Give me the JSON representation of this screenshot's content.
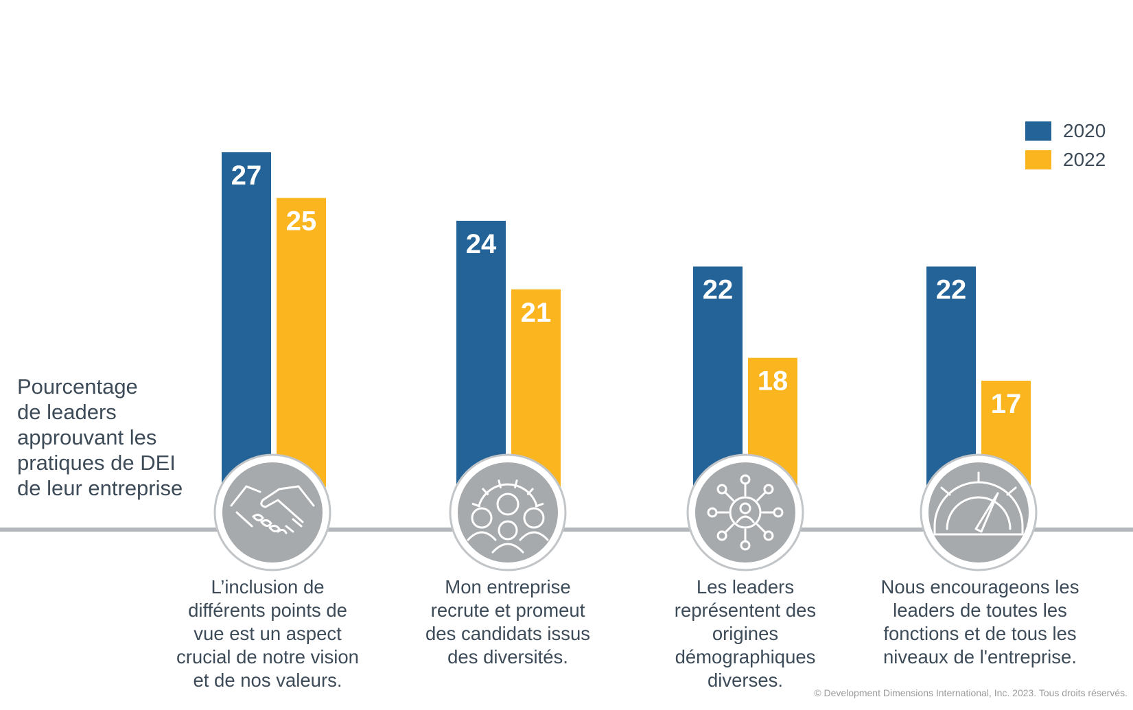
{
  "chart_data": {
    "type": "bar",
    "ylabel_lines": [
      "Pourcentage",
      "de leaders",
      "approuvant les",
      "pratiques de DEI",
      "de leur entreprise"
    ],
    "series": [
      {
        "name": "2020",
        "color": "#246397",
        "values": [
          27,
          24,
          22,
          22
        ]
      },
      {
        "name": "2022",
        "color": "#fbb51f",
        "values": [
          25,
          21,
          18,
          17
        ]
      }
    ],
    "categories": [
      {
        "icon": "handshake-icon",
        "lines": [
          "L’inclusion de",
          "différents points de",
          "vue est un aspect",
          "crucial de notre vision",
          "et de nos valeurs."
        ]
      },
      {
        "icon": "gear-team-icon",
        "lines": [
          "Mon entreprise",
          "recrute et promeut",
          "des candidats issus",
          "des diversités."
        ]
      },
      {
        "icon": "network-person-icon",
        "lines": [
          "Les leaders",
          "représentent des",
          "origines",
          "démographiques",
          "diverses."
        ]
      },
      {
        "icon": "gauge-icon",
        "lines": [
          "Nous encourageons les",
          "leaders de toutes les",
          "fonctions et de tous les",
          "niveaux de l'entreprise."
        ]
      }
    ],
    "legend_position": "top-right",
    "grid": false
  },
  "copyright": "© Development Dimensions International, Inc. 2023. Tous droits réservés."
}
